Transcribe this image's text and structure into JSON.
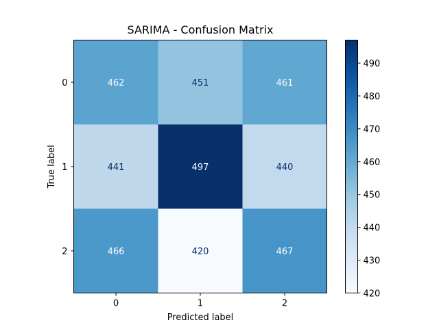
{
  "chart_data": {
    "type": "heatmap",
    "title": "SARIMA - Confusion Matrix",
    "xlabel": "Predicted label",
    "ylabel": "True label",
    "x_categories": [
      "0",
      "1",
      "2"
    ],
    "y_categories": [
      "0",
      "1",
      "2"
    ],
    "values": [
      [
        462,
        451,
        461
      ],
      [
        441,
        497,
        440
      ],
      [
        466,
        420,
        467
      ]
    ],
    "colormap": "Blues",
    "colorbar": {
      "min": 420,
      "max": 497,
      "ticks": [
        "420",
        "430",
        "440",
        "450",
        "460",
        "470",
        "480",
        "490"
      ]
    },
    "grid": false
  }
}
